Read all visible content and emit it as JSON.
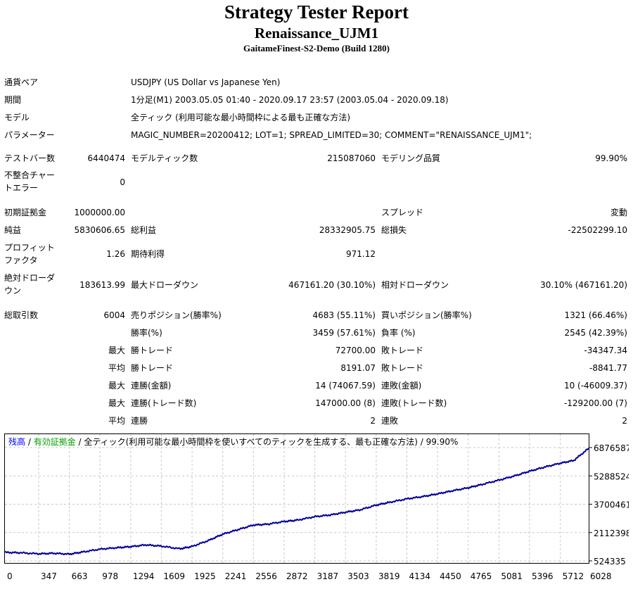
{
  "header": {
    "title": "Strategy Tester Report",
    "subtitle": "Renaissance_UJM1",
    "server": "GaitameFinest-S2-Demo (Build 1280)"
  },
  "settings": {
    "symbol_label": "通貨ペア",
    "symbol_value": "USDJPY (US Dollar vs Japanese Yen)",
    "period_label": "期間",
    "period_value": "1分足(M1) 2003.05.05 01:40 - 2020.09.17 23:57 (2003.05.04 - 2020.09.18)",
    "model_label": "モデル",
    "model_value": "全ティック (利用可能な最小時間枠による最も正確な方法)",
    "params_label": "パラメーター",
    "params_value": "MAGIC_NUMBER=20200412; LOT=1; SPREAD_LIMITED=30; COMMENT=\"RENAISSANCE_UJM1\";"
  },
  "stats": {
    "bars_label": "テストバー数",
    "bars_value": "6440474",
    "ticks_label": "モデルティック数",
    "ticks_value": "215087060",
    "quality_label": "モデリング品質",
    "quality_value": "99.90%",
    "mismatch_label_1": "不整合チャー",
    "mismatch_label_2": "トエラー",
    "mismatch_value": "0",
    "deposit_label": "初期証拠金",
    "deposit_value": "1000000.00",
    "spread_label": "スプレッド",
    "spread_value": "変動",
    "net_profit_label": "純益",
    "net_profit_value": "5830606.65",
    "gross_profit_label": "総利益",
    "gross_profit_value": "28332905.75",
    "gross_loss_label": "総損失",
    "gross_loss_value": "-22502299.10",
    "pf_label_1": "プロフィット",
    "pf_label_2": "ファクタ",
    "pf_value": "1.26",
    "expected_label": "期待利得",
    "expected_value": "971.12",
    "abs_dd_label_1": "絶対ドローダ",
    "abs_dd_label_2": "ウン",
    "abs_dd_value": "183613.99",
    "max_dd_label": "最大ドローダウン",
    "max_dd_value": "467161.20 (30.10%)",
    "rel_dd_label": "相対ドローダウン",
    "rel_dd_value": "30.10% (467161.20)",
    "total_trades_label": "総取引数",
    "total_trades_value": "6004",
    "short_label": "売りポジション(勝率%)",
    "short_value": "4683 (55.11%)",
    "long_label": "買いポジション(勝率%)",
    "long_value": "1321 (66.46%)",
    "win_rate_label": "勝率(%)",
    "win_rate_value": "3459 (57.61%)",
    "loss_rate_label": "負率 (%)",
    "loss_rate_value": "2545 (42.39%)",
    "max_prefix": "最大",
    "avg_prefix": "平均",
    "largest_win_label": "勝トレード",
    "largest_win_value": "72700.00",
    "largest_loss_label": "敗トレード",
    "largest_loss_value": "-34347.34",
    "avg_win_label": "勝トレード",
    "avg_win_value": "8191.07",
    "avg_loss_label": "敗トレード",
    "avg_loss_value": "-8841.77",
    "cons_wins_amt_label": "連勝(金額)",
    "cons_wins_amt_value": "14 (74067.59)",
    "cons_losses_amt_label": "連敗(金額)",
    "cons_losses_amt_value": "10 (-46009.37)",
    "cons_wins_cnt_label": "連勝(トレード数)",
    "cons_wins_cnt_value": "147000.00 (8)",
    "cons_losses_cnt_label": "連敗(トレード数)",
    "cons_losses_cnt_value": "-129200.00 (7)",
    "avg_cons_wins_label": "連勝",
    "avg_cons_wins_value": "2",
    "avg_cons_losses_label": "連敗",
    "avg_cons_losses_value": "2"
  },
  "chart_data": {
    "type": "line",
    "legend": {
      "balance": "残高",
      "sep1": " / ",
      "equity": "有効証拠金",
      "sep2": " / ",
      "rest": "全ティック(利用可能な最小時間枠を使いすべてのティックを生成する、最も正確な方法) / 99.90%"
    },
    "colors": {
      "balance": "#0000ff",
      "equity": "#00a000",
      "line": "#00009a",
      "grid": "#c8c8c8",
      "frame": "#000000"
    },
    "x_ticks": [
      0,
      347,
      663,
      978,
      1294,
      1609,
      1925,
      2241,
      2556,
      2872,
      3187,
      3503,
      3819,
      4134,
      4450,
      4765,
      5081,
      5396,
      5712,
      6028
    ],
    "y_ticks": [
      524335,
      2112398,
      3700461,
      5288524,
      6876587
    ],
    "xlim": [
      0,
      6004
    ],
    "ylim": [
      524335,
      6876587
    ],
    "series": [
      {
        "x": [
          0,
          150,
          347,
          500,
          663,
          800,
          978,
          1150,
          1294,
          1450,
          1609,
          1800,
          1925,
          2100,
          2241,
          2400,
          2556,
          2700,
          2872,
          3000,
          3187,
          3350,
          3503,
          3650,
          3819,
          3950,
          4134,
          4300,
          4450,
          4600,
          4765,
          4900,
          5081,
          5250,
          5396,
          5550,
          5712,
          5850,
          6004
        ],
        "y": [
          1000000,
          980000,
          920000,
          950000,
          900000,
          1020000,
          1180000,
          1260000,
          1320000,
          1420000,
          1350000,
          1200000,
          1330000,
          1680000,
          2020000,
          2280000,
          2530000,
          2580000,
          2730000,
          2800000,
          3000000,
          3100000,
          3250000,
          3380000,
          3650000,
          3800000,
          4000000,
          4130000,
          4280000,
          4450000,
          4620000,
          4800000,
          5050000,
          5300000,
          5550000,
          5780000,
          6000000,
          6150000,
          6830606
        ]
      }
    ]
  }
}
